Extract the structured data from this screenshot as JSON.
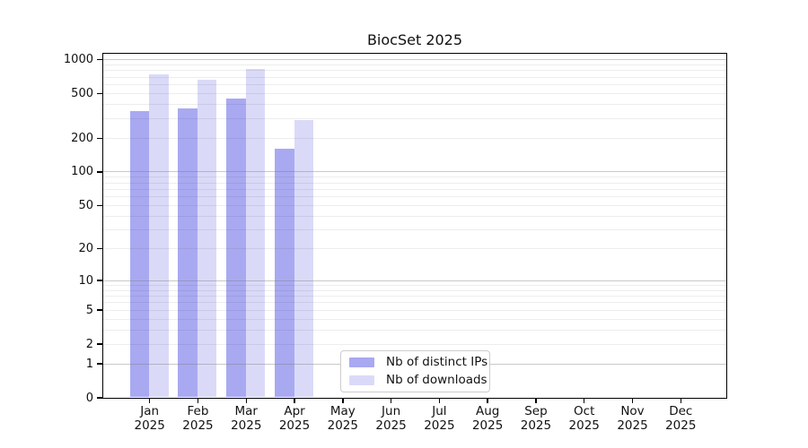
{
  "page": {
    "background": "#ffffff"
  },
  "chart_data": {
    "type": "bar",
    "title": "BiocSet 2025",
    "categories": [
      "Jan 2025",
      "Feb 2025",
      "Mar 2025",
      "Apr 2025",
      "May 2025",
      "Jun 2025",
      "Jul 2025",
      "Aug 2025",
      "Sep 2025",
      "Oct 2025",
      "Nov 2025",
      "Dec 2025"
    ],
    "months": [
      "Jan",
      "Feb",
      "Mar",
      "Apr",
      "May",
      "Jun",
      "Jul",
      "Aug",
      "Sep",
      "Oct",
      "Nov",
      "Dec"
    ],
    "year_label": "2025",
    "series": [
      {
        "name": "Nb of distinct IPs",
        "color": "#a9a9f1",
        "values": [
          345,
          365,
          450,
          160,
          null,
          null,
          null,
          null,
          null,
          null,
          null,
          null
        ]
      },
      {
        "name": "Nb of downloads",
        "color": "#dadaf8",
        "values": [
          740,
          660,
          825,
          287,
          null,
          null,
          null,
          null,
          null,
          null,
          null,
          null
        ]
      }
    ],
    "xlabel": "",
    "ylabel": "",
    "yscale": "log1p",
    "ylim": [
      0,
      1130
    ],
    "yticks": [
      0,
      1,
      2,
      5,
      10,
      20,
      50,
      100,
      200,
      500,
      1000
    ],
    "grid": {
      "major_ticks": [
        1,
        10,
        100,
        1000
      ],
      "minor_per_decade": [
        2,
        3,
        4,
        5,
        6,
        7,
        8,
        9
      ],
      "minor_decades": [
        1,
        10,
        100
      ]
    },
    "legend": {
      "position": "lower center",
      "entries": [
        "Nb of distinct IPs",
        "Nb of downloads"
      ]
    }
  }
}
